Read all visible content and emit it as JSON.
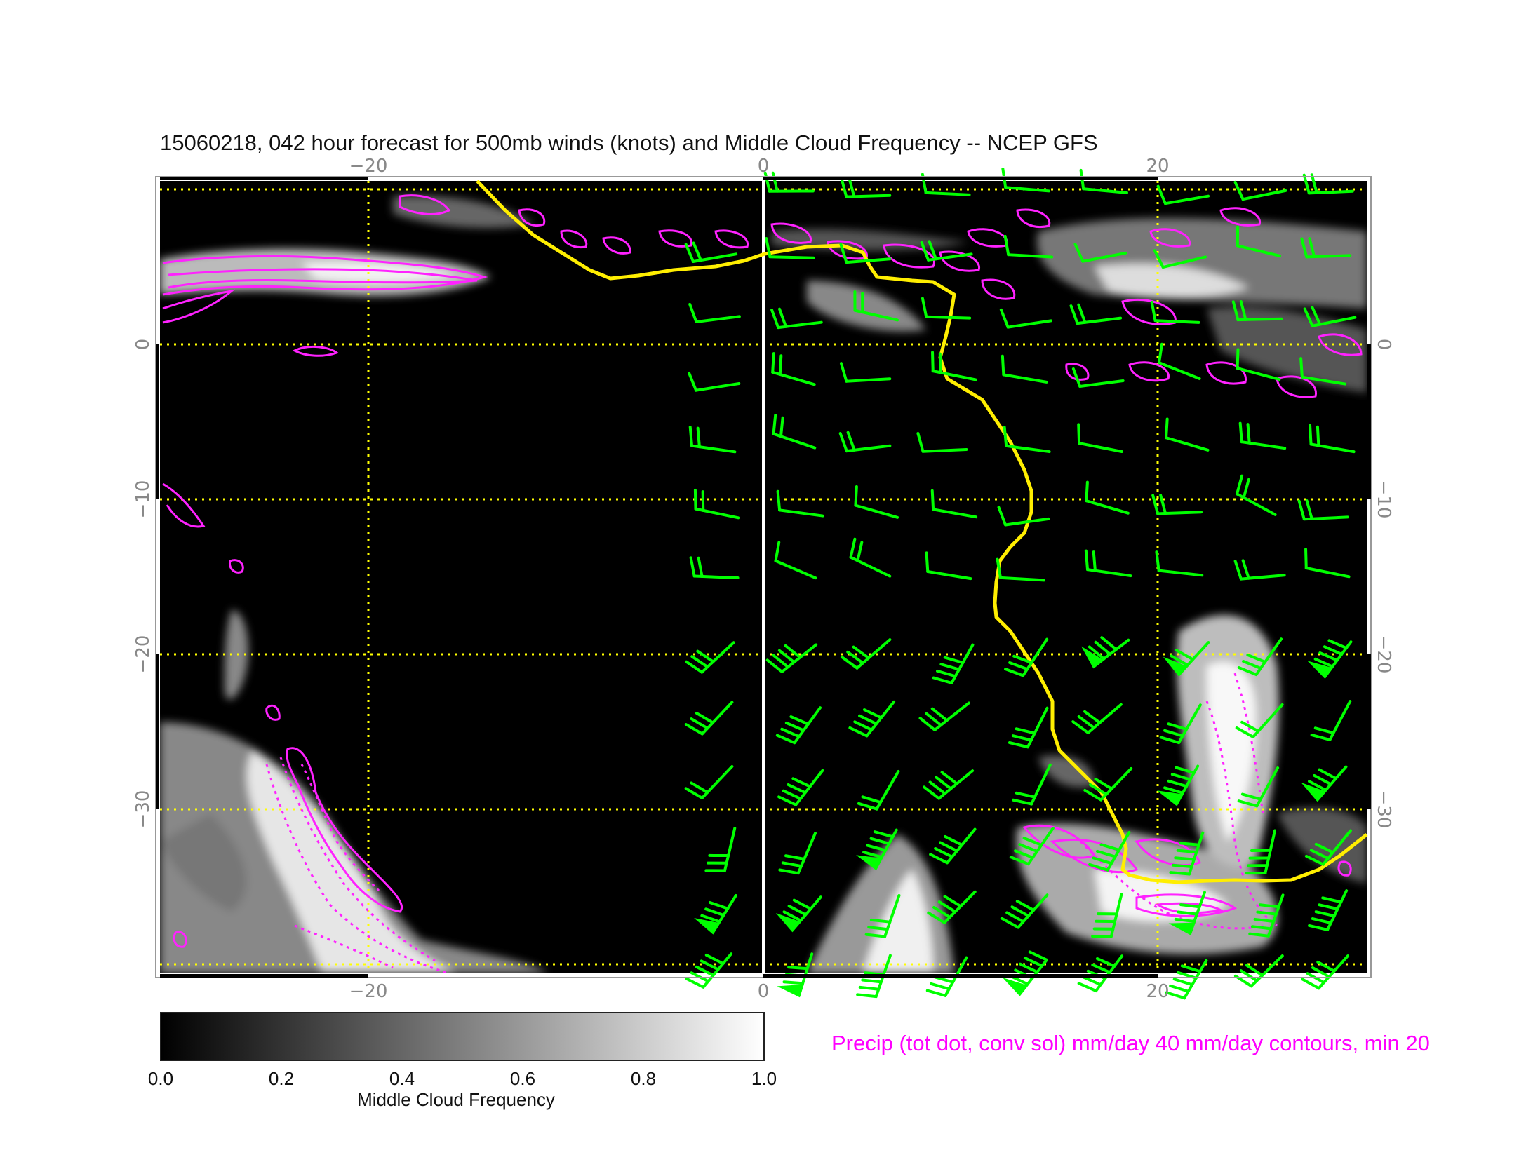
{
  "title": "15060218, 042 hour forecast for 500mb winds (knots) and Middle Cloud Frequency -- NCEP GFS",
  "map": {
    "x_ticks": [
      "−20",
      "0",
      "20"
    ],
    "y_ticks": [
      "0",
      "−10",
      "−20",
      "−30"
    ],
    "lon_range": [
      -31,
      31
    ],
    "lat_range": [
      10.5,
      -40.5
    ],
    "grid_lons": [
      -20,
      0,
      20
    ],
    "grid_lats": [
      10,
      0,
      -10,
      -20,
      -30,
      -40
    ],
    "colors": {
      "background": "#000000",
      "grid": "#ffff00",
      "coastline": "#ffee00",
      "meridian_zero": "#ffffff",
      "wind_barbs": "#00ff00",
      "precip_contours": "#ff00ff"
    }
  },
  "colorbar": {
    "ticks": [
      "0.0",
      "0.2",
      "0.4",
      "0.6",
      "0.8",
      "1.0"
    ],
    "label": "Middle Cloud Frequency",
    "min": 0.0,
    "max": 1.0
  },
  "precip_note": "Precip (tot dot, conv sol) mm/day 40 mm/day contours, min 20"
}
